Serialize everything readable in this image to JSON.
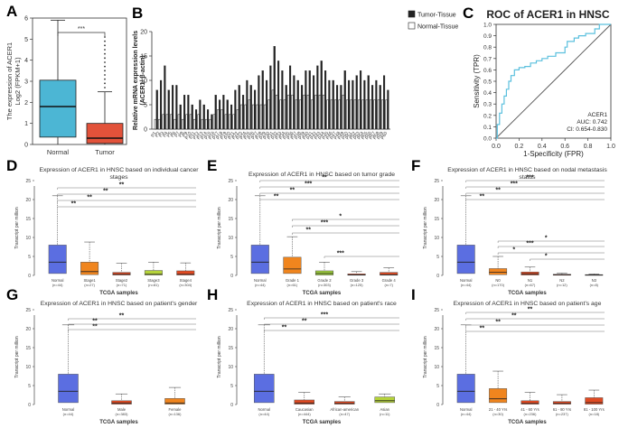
{
  "figure": {
    "panel_letters": [
      "A",
      "B",
      "C",
      "D",
      "E",
      "F",
      "G",
      "H",
      "I"
    ]
  },
  "colors": {
    "normal_box": "#4cb6d4",
    "tumor_box": "#e2523a",
    "bar_tumor": "#222222",
    "bar_normal": "#ffffff",
    "roc_line": "#5bc0de",
    "tcga_normal": "#5b6ee1",
    "tcga_orange": "#f0851e",
    "tcga_red": "#e04a22",
    "tcga_green": "#b5d33a",
    "tcga_yellowgreen": "#9ccc3a"
  },
  "chart_data": [
    {
      "id": "A",
      "type": "box",
      "title": "",
      "ylabel_line1": "The expression of ACER1",
      "ylabel_line2": "Log2 (FPKM+1)",
      "categories": [
        "Normal",
        "Tumor"
      ],
      "ylim": [
        0,
        6
      ],
      "yticks": [
        "0",
        "1",
        "2",
        "3",
        "4",
        "5",
        "6"
      ],
      "boxes": [
        {
          "name": "Normal",
          "min": 0.0,
          "q1": 0.35,
          "median": 1.8,
          "q3": 3.05,
          "max": 5.9,
          "outliers": []
        },
        {
          "name": "Tumor",
          "min": 0.0,
          "q1": 0.05,
          "median": 0.3,
          "q3": 1.0,
          "max": 2.5,
          "outliers": [
            2.7,
            2.9,
            3.1,
            3.3,
            3.5,
            3.7,
            3.9,
            4.1,
            4.3,
            4.5,
            4.7,
            4.9,
            5.1
          ]
        }
      ],
      "significance": "***"
    },
    {
      "id": "B",
      "type": "bar",
      "ylabel_line1": "Relative mRNA expression levels",
      "ylabel_line2": "(ACER1/ β-actin)",
      "ylim": [
        0,
        20
      ],
      "yticks": [
        "0",
        "5",
        "10",
        "15",
        "20"
      ],
      "legend": [
        "Tumor-Tissue",
        "Normal-Tissue"
      ],
      "categories": [
        "P1",
        "P2",
        "P3",
        "P4",
        "P5",
        "P6",
        "P7",
        "P8",
        "P9",
        "P10",
        "P11",
        "P12",
        "P13",
        "P14",
        "P15",
        "P16",
        "P17",
        "P18",
        "P19",
        "P20",
        "P21",
        "P22",
        "P23",
        "P24",
        "P25",
        "P26",
        "P27",
        "P28",
        "P29",
        "P30",
        "P31",
        "P32",
        "P33",
        "P34",
        "P35",
        "P36",
        "P37",
        "P38",
        "P39",
        "P40",
        "P41",
        "P42",
        "P43",
        "P44",
        "P45",
        "P46",
        "P47",
        "P48",
        "P49",
        "P50",
        "P51",
        "P52",
        "P53",
        "P54",
        "P55",
        "P56",
        "P57",
        "P58",
        "P59",
        "P60"
      ],
      "series": [
        {
          "name": "Tumor-Tissue",
          "values": [
            8,
            10,
            13,
            8,
            9,
            9,
            5,
            7,
            7,
            5,
            4,
            6,
            5,
            4,
            3,
            7,
            6,
            7,
            6,
            5,
            8,
            9,
            7,
            10,
            9,
            8,
            11,
            12,
            10,
            13,
            17,
            14,
            12,
            9,
            13,
            11,
            10,
            9,
            12,
            12,
            11,
            13,
            14,
            12,
            10,
            10,
            9,
            9,
            12,
            10,
            10,
            11,
            12,
            10,
            11,
            9,
            10,
            9,
            11,
            8
          ]
        },
        {
          "name": "Normal-Tissue",
          "values": [
            2,
            2,
            3,
            3,
            3,
            2,
            3,
            2,
            3,
            3,
            2,
            3,
            2,
            2,
            2,
            3,
            4,
            4,
            3,
            3,
            3,
            4,
            5,
            5,
            6,
            5,
            5,
            5,
            5,
            6,
            8,
            7,
            6,
            6,
            7,
            7,
            6,
            6,
            7,
            7,
            6,
            7,
            7,
            7,
            6,
            6,
            6,
            6,
            7,
            6,
            6,
            6,
            6,
            6,
            6,
            6,
            6,
            6,
            6,
            6
          ]
        }
      ]
    },
    {
      "id": "C",
      "type": "line",
      "title": "ROC of ACER1 in HNSC",
      "xlabel": "1-Specificity (FPR)",
      "ylabel": "Sensitivity (TPR)",
      "xlim": [
        0,
        1
      ],
      "ylim": [
        0,
        1
      ],
      "xticks": [
        "0.0",
        "0.2",
        "0.4",
        "0.6",
        "0.8",
        "1.0"
      ],
      "yticks": [
        "0.0",
        "0.1",
        "0.2",
        "0.3",
        "0.4",
        "0.5",
        "0.6",
        "0.7",
        "0.8",
        "0.9",
        "1.0"
      ],
      "series": [
        {
          "name": "ACER1",
          "x": [
            0,
            0.01,
            0.01,
            0.03,
            0.03,
            0.05,
            0.05,
            0.07,
            0.07,
            0.09,
            0.09,
            0.11,
            0.11,
            0.13,
            0.13,
            0.16,
            0.16,
            0.2,
            0.2,
            0.25,
            0.25,
            0.3,
            0.3,
            0.35,
            0.35,
            0.4,
            0.4,
            0.45,
            0.45,
            0.52,
            0.52,
            0.6,
            0.6,
            0.62,
            0.62,
            0.68,
            0.68,
            0.72,
            0.72,
            0.78,
            0.78,
            0.86,
            0.86,
            0.9,
            0.9,
            1.0
          ],
          "y": [
            0,
            0,
            0.12,
            0.12,
            0.22,
            0.22,
            0.3,
            0.3,
            0.37,
            0.37,
            0.43,
            0.43,
            0.5,
            0.5,
            0.55,
            0.55,
            0.6,
            0.6,
            0.62,
            0.62,
            0.63,
            0.63,
            0.66,
            0.66,
            0.68,
            0.68,
            0.7,
            0.7,
            0.72,
            0.72,
            0.75,
            0.75,
            0.8,
            0.8,
            0.85,
            0.85,
            0.88,
            0.88,
            0.9,
            0.9,
            0.92,
            0.92,
            0.96,
            0.96,
            1.0,
            1.0
          ]
        }
      ],
      "annotation": [
        "ACER1",
        "AUC: 0.742",
        "CI: 0.654-0.830"
      ]
    },
    {
      "id": "D",
      "type": "box",
      "title_line1": "Expression of ACER1 in HNSC based on individual cancer",
      "title_line2": "stages",
      "xlabel": "TCGA samples",
      "ylabel": "Transcript per million",
      "ylim": [
        0,
        25
      ],
      "yticks": [
        "0",
        "5",
        "10",
        "15",
        "20",
        "25"
      ],
      "categories": [
        "Normal",
        "Stage1",
        "Stage2",
        "Stage3",
        "Stage4"
      ],
      "counts": [
        "(n=44)",
        "(n=27)",
        "(n=71)",
        "(n=81)",
        "(n=304)"
      ],
      "colors": [
        "#5b6ee1",
        "#f0851e",
        "#e04a22",
        "#b5d33a",
        "#e04a22"
      ],
      "boxes": [
        {
          "q1": 0.5,
          "median": 3.5,
          "q3": 8,
          "max": 21
        },
        {
          "q1": 0.2,
          "median": 1,
          "q3": 3.5,
          "max": 8.8
        },
        {
          "q1": 0.1,
          "median": 0.3,
          "q3": 0.8,
          "max": 3.2
        },
        {
          "q1": 0.1,
          "median": 0.3,
          "q3": 1.3,
          "max": 3.5
        },
        {
          "q1": 0.1,
          "median": 0.3,
          "q3": 1.2,
          "max": 3.3
        }
      ],
      "significance": [
        "**",
        "**",
        "**",
        "**"
      ]
    },
    {
      "id": "E",
      "type": "box",
      "title_line1": "Expression of ACER1 in HNSC based on tumor grade",
      "title_line2": "",
      "xlabel": "TCGA samples",
      "ylabel": "Transcript per million",
      "ylim": [
        0,
        25
      ],
      "yticks": [
        "0",
        "5",
        "10",
        "15",
        "20",
        "25"
      ],
      "categories": [
        "Normal",
        "Grade 1",
        "Grade 2",
        "Grade 3",
        "Grade 4"
      ],
      "counts": [
        "(n=44)",
        "(n=61)",
        "(n=303)",
        "(n=125)",
        "(n=7)"
      ],
      "colors": [
        "#5b6ee1",
        "#f0851e",
        "#9ccc3a",
        "#e04a22",
        "#e04a22"
      ],
      "boxes": [
        {
          "q1": 0.5,
          "median": 3.5,
          "q3": 8,
          "max": 21
        },
        {
          "q1": 0.5,
          "median": 1.7,
          "q3": 4.8,
          "max": 10.2
        },
        {
          "q1": 0.1,
          "median": 0.5,
          "q3": 1.2,
          "max": 3.5
        },
        {
          "q1": 0.05,
          "median": 0.15,
          "q3": 0.4,
          "max": 1.0
        },
        {
          "q1": 0.05,
          "median": 0.2,
          "q3": 0.8,
          "max": 2.0
        }
      ],
      "significance": [
        "**",
        "**",
        "***",
        "**",
        "*",
        "***",
        "**",
        "***"
      ]
    },
    {
      "id": "F",
      "type": "box",
      "title_line1": "Expression of ACER1 in HNSC based on nodal metastasis",
      "title_line2": "status",
      "xlabel": "TCGA samples",
      "ylabel": "Transcript per million",
      "ylim": [
        0,
        25
      ],
      "yticks": [
        "0",
        "5",
        "10",
        "15",
        "20",
        "25"
      ],
      "categories": [
        "Normal",
        "N0",
        "N1",
        "N2",
        "N3"
      ],
      "counts": [
        "(n=44)",
        "(n=170)",
        "(n=67)",
        "(n=12)",
        "(n=8)"
      ],
      "colors": [
        "#5b6ee1",
        "#f0851e",
        "#e04a22",
        "#e04a22",
        "#e04a22"
      ],
      "boxes": [
        {
          "q1": 0.5,
          "median": 3.5,
          "q3": 8,
          "max": 21
        },
        {
          "q1": 0.2,
          "median": 0.8,
          "q3": 1.8,
          "max": 5.0
        },
        {
          "q1": 0.1,
          "median": 0.4,
          "q3": 0.9,
          "max": 2.2
        },
        {
          "q1": 0.05,
          "median": 0.1,
          "q3": 0.3,
          "max": 0.6
        },
        {
          "q1": 0.05,
          "median": 0.1,
          "q3": 0.2,
          "max": 0.4
        }
      ],
      "significance": [
        "**",
        "**",
        "***",
        "***",
        "*",
        "***",
        "*",
        "*"
      ]
    },
    {
      "id": "G",
      "type": "box",
      "title_line1": "Expression of ACER1 in HNSC based on patient's gender",
      "title_line2": "",
      "xlabel": "TCGA samples",
      "ylabel": "Transcript per million",
      "ylim": [
        0,
        25
      ],
      "yticks": [
        "0",
        "5",
        "10",
        "15",
        "20",
        "25"
      ],
      "categories": [
        "Normal",
        "Male",
        "Female"
      ],
      "counts": [
        "(n=44)",
        "(n=383)",
        "(n=136)"
      ],
      "colors": [
        "#5b6ee1",
        "#e04a22",
        "#f0851e"
      ],
      "boxes": [
        {
          "q1": 0.5,
          "median": 3.5,
          "q3": 8,
          "max": 21
        },
        {
          "q1": 0.1,
          "median": 0.4,
          "q3": 1.0,
          "max": 2.8
        },
        {
          "q1": 0.1,
          "median": 0.4,
          "q3": 1.6,
          "max": 4.5
        }
      ],
      "significance": [
        "**",
        "**",
        "**"
      ]
    },
    {
      "id": "H",
      "type": "box",
      "title_line1": "Expression of ACER1 in HNSC based on patient's race",
      "title_line2": "",
      "xlabel": "TCGA samples",
      "ylabel": "Transcript per million",
      "ylim": [
        0,
        25
      ],
      "yticks": [
        "0",
        "5",
        "10",
        "15",
        "20",
        "25"
      ],
      "categories": [
        "Normal",
        "Caucasian",
        "African-american",
        "Asian"
      ],
      "counts": [
        "(n=44)",
        "(n=444)",
        "(n=47)",
        "(n=11)"
      ],
      "colors": [
        "#5b6ee1",
        "#e04a22",
        "#e04a22",
        "#b5d33a"
      ],
      "boxes": [
        {
          "q1": 0.5,
          "median": 3.5,
          "q3": 8,
          "max": 21
        },
        {
          "q1": 0.1,
          "median": 0.4,
          "q3": 1.2,
          "max": 3.2
        },
        {
          "q1": 0.1,
          "median": 0.3,
          "q3": 0.8,
          "max": 2.0
        },
        {
          "q1": 0.5,
          "median": 1.0,
          "q3": 2.0,
          "max": 2.8
        }
      ],
      "significance": [
        "**",
        "**",
        "***"
      ]
    },
    {
      "id": "I",
      "type": "box",
      "title_line1": "Expression of ACER1 in HNSC based on patient's age",
      "title_line2": "",
      "xlabel": "TCGA samples",
      "ylabel": "Transcript per million",
      "ylim": [
        0,
        25
      ],
      "yticks": [
        "0",
        "5",
        "10",
        "15",
        "20",
        "25"
      ],
      "categories": [
        "Normal",
        "21 - 40 Yrs",
        "41 - 60 Yrs",
        "61 - 80 Yrs",
        "81 - 100 Yrs"
      ],
      "counts": [
        "(n=44)",
        "(n=30)",
        "(n=236)",
        "(n=237)",
        "(n=18)"
      ],
      "colors": [
        "#5b6ee1",
        "#f0851e",
        "#e04a22",
        "#e04a22",
        "#e04a22"
      ],
      "boxes": [
        {
          "q1": 0.5,
          "median": 3.5,
          "q3": 8,
          "max": 21
        },
        {
          "q1": 0.5,
          "median": 1.5,
          "q3": 4.2,
          "max": 8.8
        },
        {
          "q1": 0.1,
          "median": 0.3,
          "q3": 1.0,
          "max": 3.2
        },
        {
          "q1": 0.1,
          "median": 0.3,
          "q3": 0.8,
          "max": 2.6
        },
        {
          "q1": 0.1,
          "median": 0.5,
          "q3": 1.8,
          "max": 3.8
        }
      ],
      "significance": [
        "**",
        "**",
        "**",
        "**"
      ]
    }
  ]
}
